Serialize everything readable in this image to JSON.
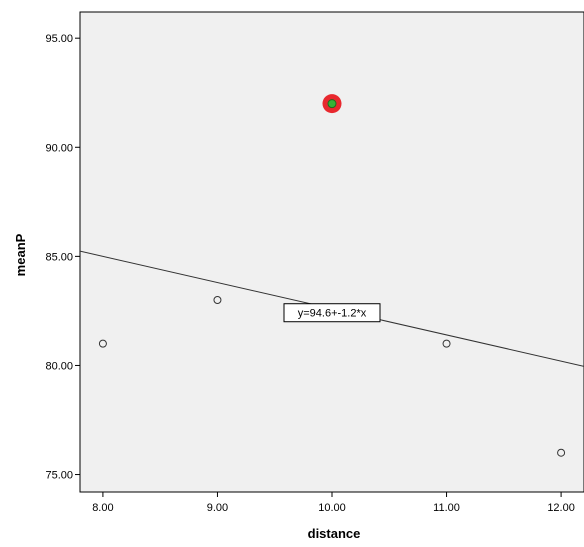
{
  "chart_data": {
    "type": "scatter",
    "xlabel": "distance",
    "ylabel": "meanP",
    "xlim": [
      7.8,
      12.2
    ],
    "ylim": [
      74.2,
      96.2
    ],
    "x_ticks": [
      8,
      9,
      10,
      11,
      12
    ],
    "y_ticks": [
      75,
      80,
      85,
      90,
      95
    ],
    "x_tick_labels": [
      "8.00",
      "9.00",
      "10.00",
      "11.00",
      "12.00"
    ],
    "y_tick_labels": [
      "75.00",
      "80.00",
      "85.00",
      "90.00",
      "95.00"
    ],
    "grid": false,
    "points": [
      {
        "x": 8,
        "y": 81
      },
      {
        "x": 9,
        "y": 83
      },
      {
        "x": 10,
        "y": 92,
        "highlighted": true
      },
      {
        "x": 11,
        "y": 81
      },
      {
        "x": 12,
        "y": 76
      }
    ],
    "fit_line": {
      "intercept": 94.6,
      "slope": -1.2,
      "label": "y=94.6+-1.2*x",
      "label_x": 10.0
    },
    "colors": {
      "plot_background": "#f0f0f0",
      "point_stroke": "#333333",
      "highlight_ring": "#e8282e",
      "highlight_center": "#36b336",
      "fit_line": "#333333"
    }
  }
}
